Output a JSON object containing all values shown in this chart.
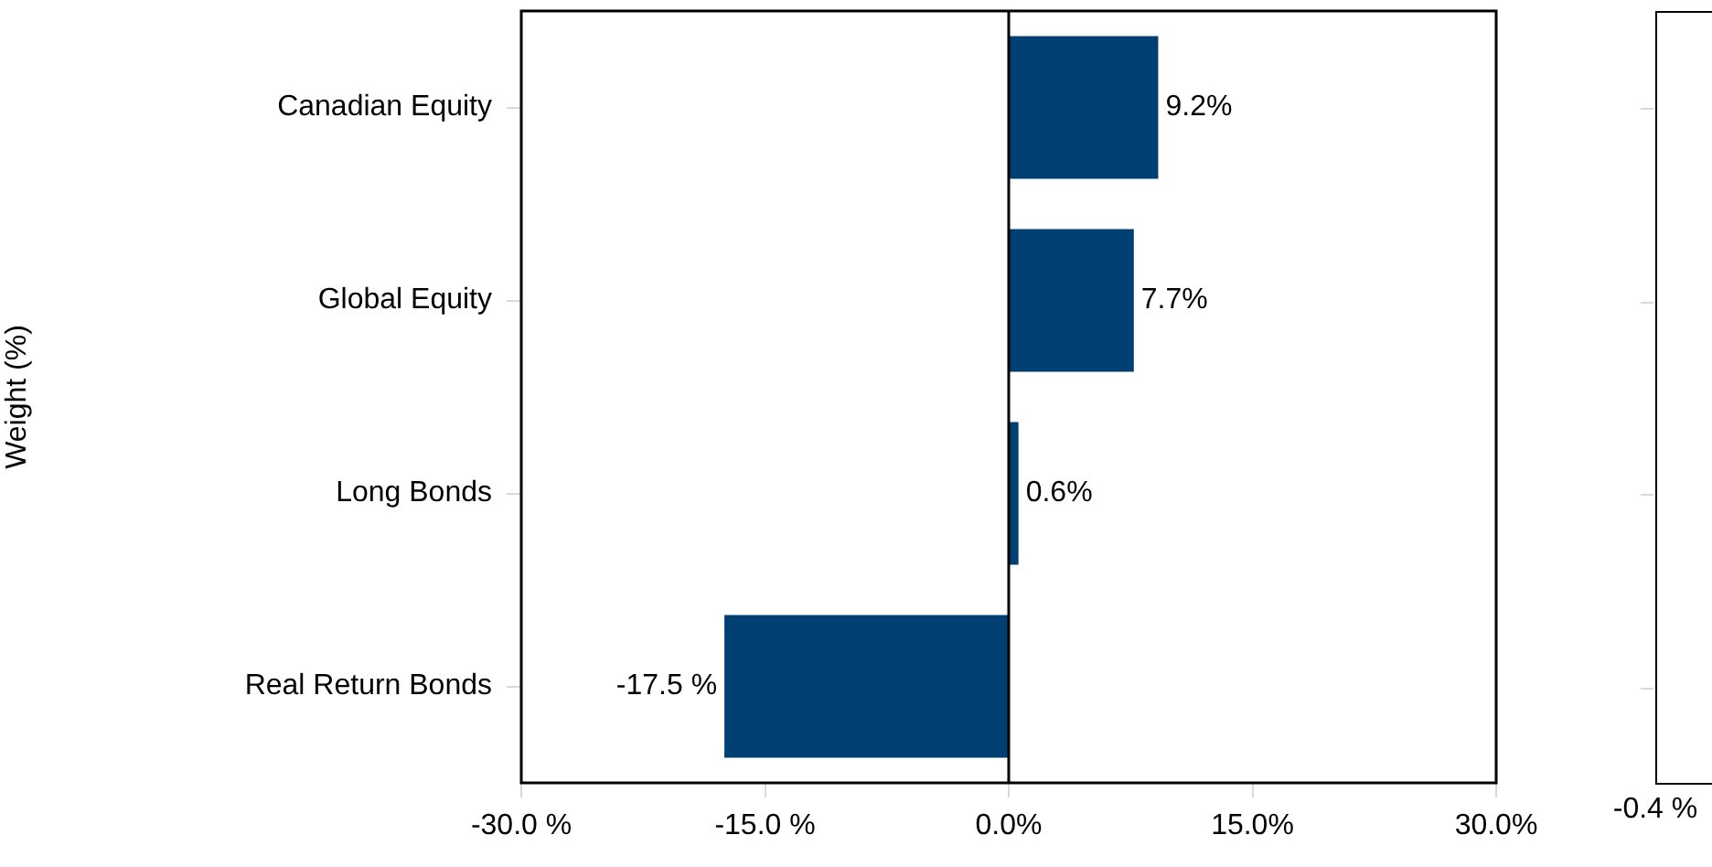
{
  "chart_data": [
    {
      "type": "bar",
      "orientation": "horizontal",
      "ylabel": "Weight (%)",
      "categories": [
        "Canadian Equity",
        "Global Equity",
        "Long Bonds",
        "Real Return Bonds"
      ],
      "values": [
        9.2,
        7.7,
        0.6,
        -17.5
      ],
      "color": "#003f72",
      "value_labels": [
        "9.2%",
        "7.7%",
        "0.6%",
        "-17.5 %"
      ],
      "xlim": [
        -30,
        30
      ],
      "xticks": [
        {
          "value": -30,
          "label": "-30.0 %"
        },
        {
          "value": -15,
          "label": "-15.0 %"
        },
        {
          "value": 0,
          "label": "0.0%"
        },
        {
          "value": 15,
          "label": "15.0%"
        },
        {
          "value": 30,
          "label": "30.0%"
        }
      ],
      "grid": false,
      "legend": false,
      "ref_lines": [
        {
          "axis": "x",
          "value": 0,
          "color": "#000000"
        }
      ]
    },
    {
      "type": "other",
      "annotations": [
        "-0.4 %"
      ]
    }
  ]
}
